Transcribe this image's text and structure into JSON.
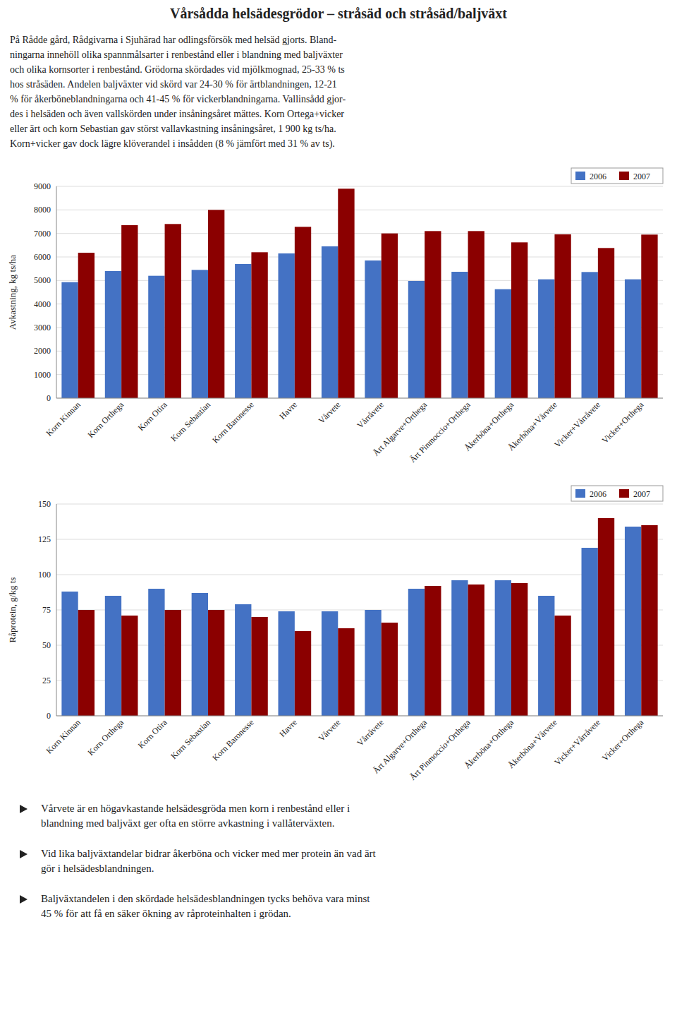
{
  "title": "Vårsådda helsädesgrödor – stråsäd och stråsäd/baljväxt",
  "intro_lines": [
    "På Rådde gård, Rådgivarna i Sjuhärad har odlingsförsök med helsäd gjorts. Bland-",
    "ningarna innehöll olika spannmålsarter i renbestånd eller i blandning med baljväxter",
    "och olika kornsorter i renbestånd. Grödorna skördades vid mjölkmognad, 25-33 % ts",
    "hos stråsäden. Andelen baljväxter vid skörd var 24-30 % för ärtblandningen, 12-21",
    "% för åkerböneblandningarna och 41-45 % för vickerblandningarna. Vallinsådd gjor-",
    "des i helsäden och även vallskörden under insåningsåret mättes. Korn Ortega+vicker",
    "eller ärt och korn Sebastian gav störst vallavkastning insåningsåret, 1 900 kg ts/ha.",
    "Korn+vicker gav dock lägre klöverandel i insådden (8 % jämfört med 31 % av ts)."
  ],
  "chart_data": [
    {
      "type": "bar",
      "ylabel": "Avkastning, kg ts/ha",
      "categories": [
        "Korn Kinnan",
        "Korn Orthega",
        "Korn Otira",
        "Korn Sebastian",
        "Korn Baronesse",
        "Havre",
        "Vårvete",
        "Vårråvete",
        "Ärt Algarve+Orthega",
        "Ärt Pinmoccio+Orthega",
        "Åkerböna+Orthega",
        "Åkerböna+Vårvete",
        "Vicker+Vårråvete",
        "Vicker+Orthega"
      ],
      "series": [
        {
          "name": "2006",
          "color": "#4472C4",
          "values": [
            4930,
            5400,
            5200,
            5450,
            5700,
            6150,
            6450,
            5850,
            4980,
            5370,
            4630,
            5050,
            5360,
            5050
          ]
        },
        {
          "name": "2007",
          "color": "#8B0000",
          "values": [
            6180,
            7350,
            7400,
            8000,
            6200,
            7280,
            8900,
            7000,
            7100,
            7100,
            6620,
            6960,
            6380,
            6950
          ]
        }
      ],
      "ylim": [
        0,
        9000
      ],
      "yticks": [
        0,
        1000,
        2000,
        3000,
        4000,
        5000,
        6000,
        7000,
        8000,
        9000
      ],
      "grid": true,
      "legend": "upper right"
    },
    {
      "type": "bar",
      "ylabel": "Råprotein, g/kg ts",
      "categories": [
        "Korn Kinnan",
        "Korn Orthega",
        "Korn Otira",
        "Korn Sebastian",
        "Korn Baronesse",
        "Havre",
        "Vårvete",
        "Vårråvete",
        "Ärt Algarve+Orthega",
        "Ärt Pinmoccio+Orthega",
        "Åkerböna+Orthega",
        "Åkerböna+Vårvete",
        "Vicker+Vårråvete",
        "Vicker+Orthega"
      ],
      "series": [
        {
          "name": "2006",
          "color": "#4472C4",
          "values": [
            88,
            85,
            90,
            87,
            79,
            74,
            74,
            75,
            90,
            96,
            96,
            85,
            119,
            134
          ]
        },
        {
          "name": "2007",
          "color": "#8B0000",
          "values": [
            75,
            71,
            75,
            75,
            70,
            60,
            62,
            66,
            92,
            93,
            94,
            71,
            140,
            135
          ]
        }
      ],
      "ylim": [
        0,
        150
      ],
      "yticks": [
        0,
        25,
        50,
        75,
        100,
        125,
        150
      ],
      "grid": true,
      "legend": "upper right"
    }
  ],
  "bullet_points": [
    "Vårvete är en högavkastande helsädesgröda men korn i renbestånd eller i\nblandning med baljväxt ger ofta en större avkastning i vallåterväxten.",
    "Vid lika baljväxtandelar bidrar åkerböna och vicker med mer protein än vad ärt\ngör i helsädesblandningen.",
    "Baljväxtandelen i den skördade helsädesblandningen tycks behöva vara minst\n45 % för att få en säker ökning av råproteinhalten i grödan."
  ]
}
